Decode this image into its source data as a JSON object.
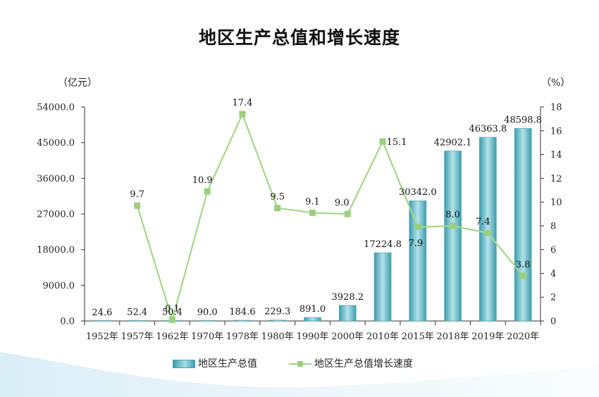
{
  "chart_data": {
    "type": "bar+line",
    "title": "地区生产总值和增长速度",
    "left_unit": "（亿元）",
    "right_unit": "（%）",
    "categories": [
      "1952年",
      "1957年",
      "1962年",
      "1970年",
      "1978年",
      "1980年",
      "1990年",
      "2000年",
      "2010年",
      "2015年",
      "2018年",
      "2019年",
      "2020年"
    ],
    "series": [
      {
        "name": "地区生产总值",
        "type": "bar",
        "axis": "left",
        "values": [
          24.6,
          52.4,
          50.4,
          90.0,
          184.6,
          229.3,
          891.0,
          3928.2,
          17224.8,
          30342.0,
          42902.1,
          46363.8,
          48598.8
        ],
        "labels": [
          "24.6",
          "52.4",
          "50.4",
          "90.0",
          "184.6",
          "229.3",
          "891.0",
          "3928.2",
          "17224.8",
          "30342.0",
          "42902.1",
          "46363.8",
          "48598.8"
        ]
      },
      {
        "name": "地区生产总值增长速度",
        "type": "line",
        "axis": "right",
        "values": [
          null,
          9.7,
          0.1,
          10.9,
          17.4,
          9.5,
          9.1,
          9.0,
          15.1,
          7.9,
          8.0,
          7.4,
          3.8
        ],
        "labels": [
          "",
          "9.7",
          "0.1",
          "10.9",
          "17.4",
          "9.5",
          "9.1",
          "9.0",
          "15.1",
          "7.9",
          "8.0",
          "7.4",
          "3.8"
        ]
      }
    ],
    "y_left": {
      "ylim": [
        0,
        54000
      ],
      "ticks": [
        "0.0",
        "9000.0",
        "18000.0",
        "27000.0",
        "36000.0",
        "45000.0",
        "54000.0"
      ]
    },
    "y_right": {
      "ylim": [
        0,
        18
      ],
      "ticks": [
        "0",
        "2",
        "4",
        "6",
        "8",
        "10",
        "12",
        "14",
        "16",
        "18"
      ]
    },
    "legend_position": "bottom",
    "colors": {
      "bar": "#4aa8b8",
      "bar_light": "#b4e2ea",
      "line": "#a7d58a",
      "marker": "#9bcf7c"
    }
  }
}
